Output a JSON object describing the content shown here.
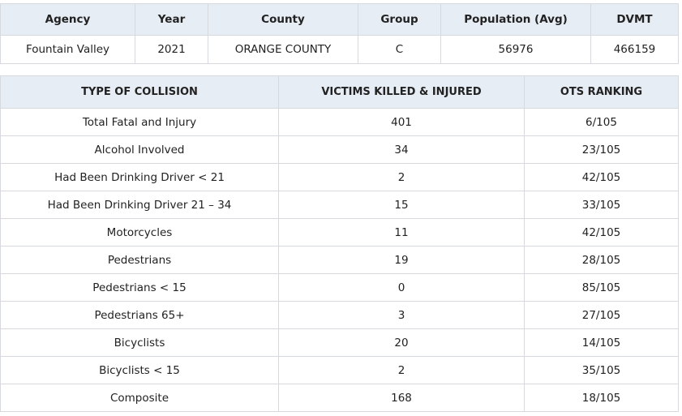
{
  "summary": {
    "header": [
      "Agency",
      "Year",
      "County",
      "Group",
      "Population (Avg)",
      "DVMT"
    ],
    "rows": [
      [
        "Fountain Valley",
        "2021",
        "ORANGE COUNTY",
        "C",
        "56976",
        "466159"
      ]
    ]
  },
  "collisions": {
    "header": [
      "TYPE OF COLLISION",
      "VICTIMS KILLED & INJURED",
      "OTS RANKING"
    ],
    "rows": [
      [
        "Total Fatal and Injury",
        "401",
        "6/105"
      ],
      [
        "Alcohol Involved",
        "34",
        "23/105"
      ],
      [
        "Had Been Drinking Driver < 21",
        "2",
        "42/105"
      ],
      [
        "Had Been Drinking Driver 21 – 34",
        "15",
        "33/105"
      ],
      [
        "Motorcycles",
        "11",
        "42/105"
      ],
      [
        "Pedestrians",
        "19",
        "28/105"
      ],
      [
        "Pedestrians < 15",
        "0",
        "85/105"
      ],
      [
        "Pedestrians 65+",
        "3",
        "27/105"
      ],
      [
        "Bicyclists",
        "20",
        "14/105"
      ],
      [
        "Bicyclists < 15",
        "2",
        "35/105"
      ],
      [
        "Composite",
        "168",
        "18/105"
      ]
    ]
  }
}
